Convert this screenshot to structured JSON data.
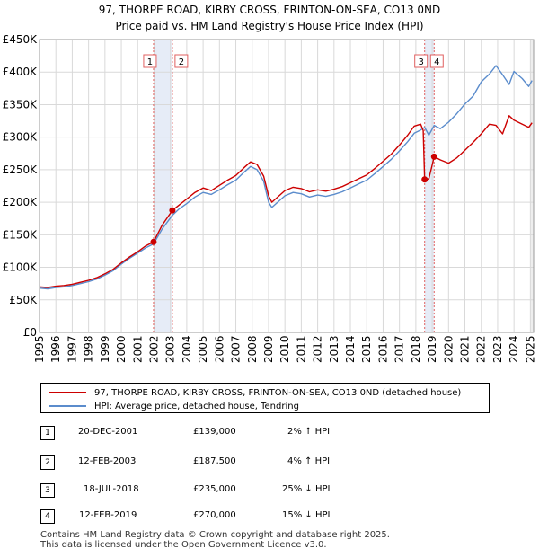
{
  "header": {
    "title_line1": "97, THORPE ROAD, KIRBY CROSS, FRINTON-ON-SEA, CO13 0ND",
    "title_line2": "Price paid vs. HM Land Registry's House Price Index (HPI)"
  },
  "colors": {
    "price_paid": "#cc0000",
    "hpi": "#5b8ccc",
    "band": "#e6ecf7",
    "vline": "#e06060"
  },
  "chart_data": {
    "type": "line",
    "title": "97, THORPE ROAD, KIRBY CROSS, FRINTON-ON-SEA, CO13 0ND",
    "subtitle": "Price paid vs. HM Land Registry's House Price Index (HPI)",
    "xlabel": "",
    "ylabel": "",
    "xlim": [
      1995,
      2025.2
    ],
    "ylim": [
      0,
      450000
    ],
    "y_ticks": [
      0,
      50000,
      100000,
      150000,
      200000,
      250000,
      300000,
      350000,
      400000,
      450000
    ],
    "y_tick_labels": [
      "£0",
      "£50K",
      "£100K",
      "£150K",
      "£200K",
      "£250K",
      "£300K",
      "£350K",
      "£400K",
      "£450K"
    ],
    "x_ticks": [
      1995,
      1996,
      1997,
      1998,
      1999,
      2000,
      2001,
      2002,
      2003,
      2004,
      2005,
      2006,
      2007,
      2008,
      2009,
      2010,
      2011,
      2012,
      2013,
      2014,
      2015,
      2016,
      2017,
      2018,
      2019,
      2020,
      2021,
      2022,
      2023,
      2024,
      2025
    ],
    "grid": true,
    "series": [
      {
        "name": "97, THORPE ROAD, KIRBY CROSS, FRINTON-ON-SEA, CO13 0ND (detached house)",
        "color": "#cc0000",
        "x": [
          1995.0,
          1995.5,
          1996.0,
          1996.5,
          1997.0,
          1997.5,
          1998.0,
          1998.5,
          1999.0,
          1999.5,
          2000.0,
          2000.5,
          2001.0,
          2001.5,
          2001.97,
          2002.5,
          2003.12,
          2003.5,
          2004.0,
          2004.5,
          2005.0,
          2005.5,
          2006.0,
          2006.5,
          2007.0,
          2007.5,
          2007.9,
          2008.3,
          2008.7,
          2009.0,
          2009.2,
          2009.6,
          2010.0,
          2010.5,
          2011.0,
          2011.5,
          2012.0,
          2012.5,
          2013.0,
          2013.5,
          2014.0,
          2014.5,
          2015.0,
          2015.5,
          2016.0,
          2016.5,
          2017.0,
          2017.5,
          2017.9,
          2018.3,
          2018.45,
          2018.54,
          2018.8,
          2019.12,
          2019.5,
          2020.0,
          2020.5,
          2021.0,
          2021.5,
          2022.0,
          2022.5,
          2022.9,
          2023.3,
          2023.7,
          2024.0,
          2024.5,
          2024.9,
          2025.1
        ],
        "values": [
          70000,
          69000,
          71000,
          72000,
          74000,
          77000,
          80000,
          84000,
          90000,
          97000,
          107000,
          116000,
          124000,
          133000,
          139000,
          165000,
          187500,
          195000,
          205000,
          215000,
          222000,
          218000,
          226000,
          234000,
          241000,
          253000,
          262000,
          258000,
          240000,
          210000,
          200000,
          209000,
          218000,
          223000,
          221000,
          216000,
          219000,
          217000,
          220000,
          224000,
          230000,
          236000,
          242000,
          252000,
          263000,
          274000,
          288000,
          303000,
          317000,
          320000,
          310000,
          235000,
          236000,
          270000,
          265000,
          260000,
          268000,
          280000,
          292000,
          305000,
          320000,
          318000,
          305000,
          333000,
          326000,
          320000,
          315000,
          322000
        ]
      },
      {
        "name": "HPI: Average price, detached house, Tendring",
        "color": "#5b8ccc",
        "x": [
          1995.0,
          1995.5,
          1996.0,
          1996.5,
          1997.0,
          1997.5,
          1998.0,
          1998.5,
          1999.0,
          1999.5,
          2000.0,
          2000.5,
          2001.0,
          2001.5,
          2001.97,
          2002.5,
          2003.12,
          2003.5,
          2004.0,
          2004.5,
          2005.0,
          2005.5,
          2006.0,
          2006.5,
          2007.0,
          2007.5,
          2007.9,
          2008.3,
          2008.7,
          2009.0,
          2009.2,
          2009.6,
          2010.0,
          2010.5,
          2011.0,
          2011.5,
          2012.0,
          2012.5,
          2013.0,
          2013.5,
          2014.0,
          2014.5,
          2015.0,
          2015.5,
          2016.0,
          2016.5,
          2017.0,
          2017.5,
          2017.9,
          2018.3,
          2018.54,
          2018.8,
          2019.12,
          2019.5,
          2020.0,
          2020.5,
          2021.0,
          2021.5,
          2022.0,
          2022.5,
          2022.9,
          2023.3,
          2023.7,
          2024.0,
          2024.5,
          2024.9,
          2025.1
        ],
        "values": [
          68000,
          67000,
          69000,
          70000,
          72000,
          75000,
          78000,
          82000,
          88000,
          95000,
          105000,
          114000,
          122000,
          130000,
          136000,
          159000,
          180000,
          189000,
          198000,
          208000,
          215000,
          212000,
          219000,
          227000,
          234000,
          246000,
          255000,
          250000,
          232000,
          200000,
          192000,
          201000,
          210000,
          215000,
          213000,
          208000,
          211000,
          209000,
          212000,
          216000,
          222000,
          228000,
          234000,
          244000,
          255000,
          266000,
          279000,
          293000,
          306000,
          311000,
          315000,
          303000,
          318000,
          313000,
          323000,
          336000,
          351000,
          363000,
          385000,
          397000,
          410000,
          396000,
          381000,
          401000,
          390000,
          378000,
          387000
        ]
      }
    ],
    "sales": [
      {
        "id": "1",
        "x": 2001.97,
        "value": 139000
      },
      {
        "id": "2",
        "x": 2003.12,
        "value": 187500
      },
      {
        "id": "3",
        "x": 2018.54,
        "value": 235000
      },
      {
        "id": "4",
        "x": 2019.12,
        "value": 270000
      }
    ]
  },
  "legend": {
    "items": [
      {
        "label": "97, THORPE ROAD, KIRBY CROSS, FRINTON-ON-SEA, CO13 0ND (detached house)"
      },
      {
        "label": "HPI: Average price, detached house, Tendring"
      }
    ]
  },
  "transactions": [
    {
      "num": "1",
      "date": "20-DEC-2001",
      "price": "£139,000",
      "hpi": "2% ↑ HPI"
    },
    {
      "num": "2",
      "date": "12-FEB-2003",
      "price": "£187,500",
      "hpi": "4% ↑ HPI"
    },
    {
      "num": "3",
      "date": "18-JUL-2018",
      "price": "£235,000",
      "hpi": "25% ↓ HPI"
    },
    {
      "num": "4",
      "date": "12-FEB-2019",
      "price": "£270,000",
      "hpi": "15% ↓ HPI"
    }
  ],
  "footer": {
    "line1": "Contains HM Land Registry data © Crown copyright and database right 2025.",
    "line2": "This data is licensed under the Open Government Licence v3.0."
  }
}
